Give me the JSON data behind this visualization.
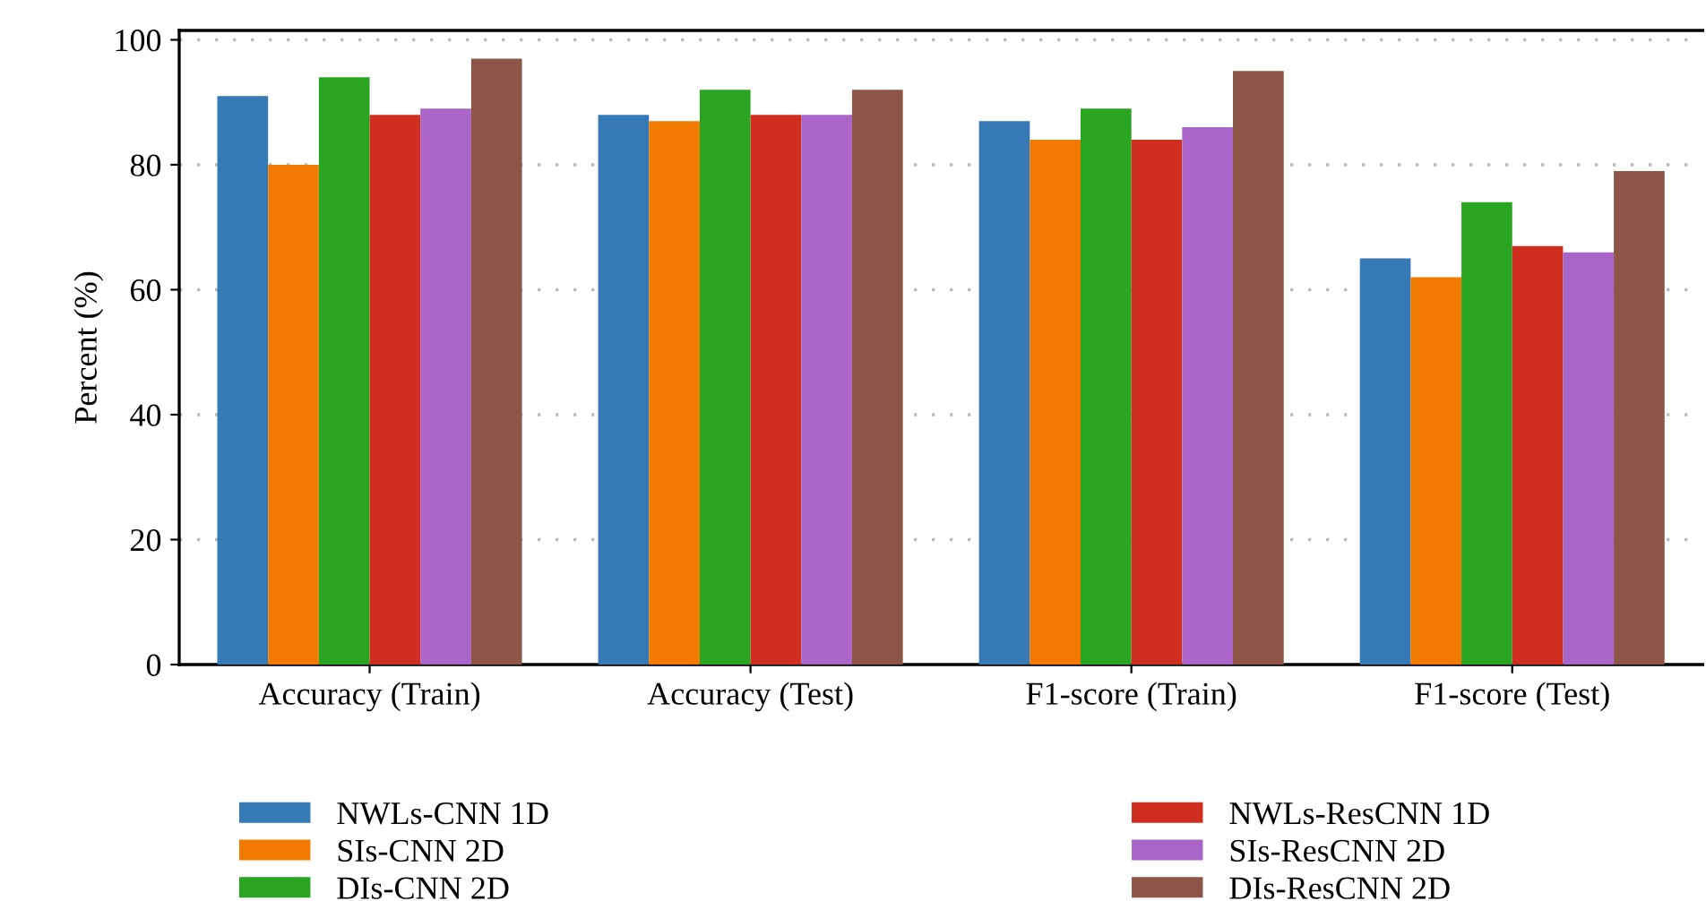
{
  "chart_data": {
    "type": "bar",
    "ylabel": "Percent (%)",
    "categories": [
      "Accuracy (Train)",
      "Accuracy (Test)",
      "F1-score (Train)",
      "F1-score (Test)"
    ],
    "series": [
      {
        "name": "NWLs-CNN 1D",
        "color": "#3579b5",
        "values": [
          91,
          88,
          87,
          65
        ]
      },
      {
        "name": "SIs-CNN 2D",
        "color": "#f07b00",
        "values": [
          80,
          87,
          84,
          62
        ]
      },
      {
        "name": "DIs-CNN 2D",
        "color": "#29a522",
        "values": [
          94,
          92,
          89,
          74
        ]
      },
      {
        "name": "NWLs-ResCNN 1D",
        "color": "#d02e1f",
        "values": [
          88,
          88,
          84,
          67
        ]
      },
      {
        "name": "SIs-ResCNN 2D",
        "color": "#aa65c8",
        "values": [
          89,
          88,
          86,
          66
        ]
      },
      {
        "name": "DIs-ResCNN 2D",
        "color": "#8c5547",
        "values": [
          97,
          92,
          95,
          79
        ]
      }
    ],
    "ylim": [
      0,
      101.5
    ],
    "yticks": [
      0,
      20,
      40,
      60,
      80,
      100
    ],
    "grid": "y",
    "legend": "bottom"
  }
}
